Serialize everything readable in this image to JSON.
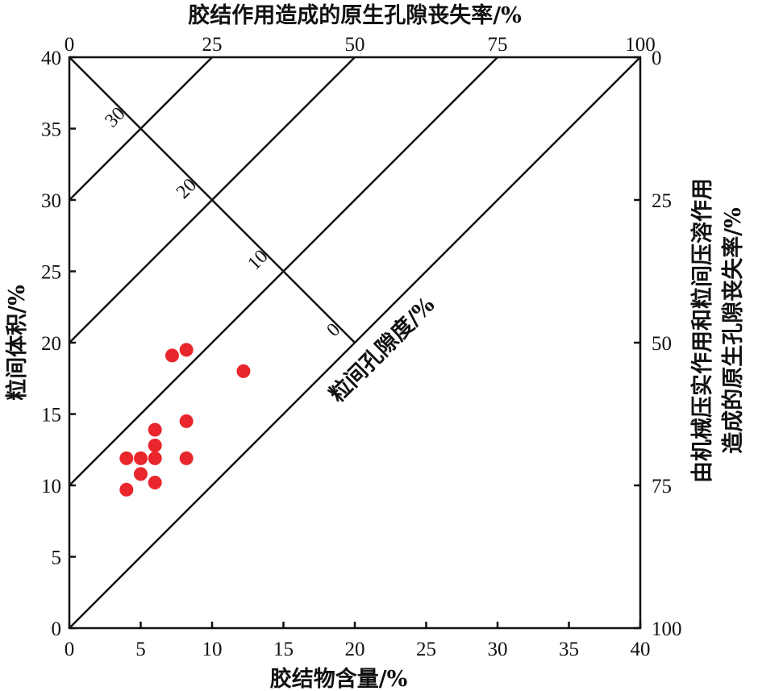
{
  "chart_data": {
    "type": "scatter",
    "title": "",
    "xlabel": "胶结物含量/%",
    "ylabel": "粒间体积/%",
    "top_label": "胶结作用造成的原生孔隙丧失率/%",
    "right_label_line1": "由机械压实作用和粒间压溶作用",
    "right_label_line2": "造成的原生孔隙丧失率/%",
    "diagonal_label": "粒间孔隙度/%",
    "xlim": [
      0,
      40
    ],
    "ylim": [
      0,
      40
    ],
    "x_ticks": [
      "0",
      "5",
      "10",
      "15",
      "20",
      "25",
      "30",
      "35",
      "40"
    ],
    "y_ticks": [
      "0",
      "5",
      "10",
      "15",
      "20",
      "25",
      "30",
      "35",
      "40"
    ],
    "top_ticks": [
      "0",
      "25",
      "50",
      "75",
      "100"
    ],
    "right_ticks": [
      "0",
      "25",
      "50",
      "75",
      "100"
    ],
    "porosity_contours": [
      "0",
      "10",
      "20",
      "30"
    ],
    "point_color": "#e8262c",
    "points": [
      {
        "x": 7.2,
        "y": 19.1
      },
      {
        "x": 8.2,
        "y": 19.5
      },
      {
        "x": 12.2,
        "y": 18.0
      },
      {
        "x": 6.0,
        "y": 13.9
      },
      {
        "x": 8.2,
        "y": 14.5
      },
      {
        "x": 6.0,
        "y": 12.8
      },
      {
        "x": 4.0,
        "y": 11.9
      },
      {
        "x": 5.0,
        "y": 11.9
      },
      {
        "x": 6.0,
        "y": 11.9
      },
      {
        "x": 8.2,
        "y": 11.9
      },
      {
        "x": 5.0,
        "y": 10.8
      },
      {
        "x": 6.0,
        "y": 10.2
      },
      {
        "x": 4.0,
        "y": 9.7
      }
    ]
  }
}
